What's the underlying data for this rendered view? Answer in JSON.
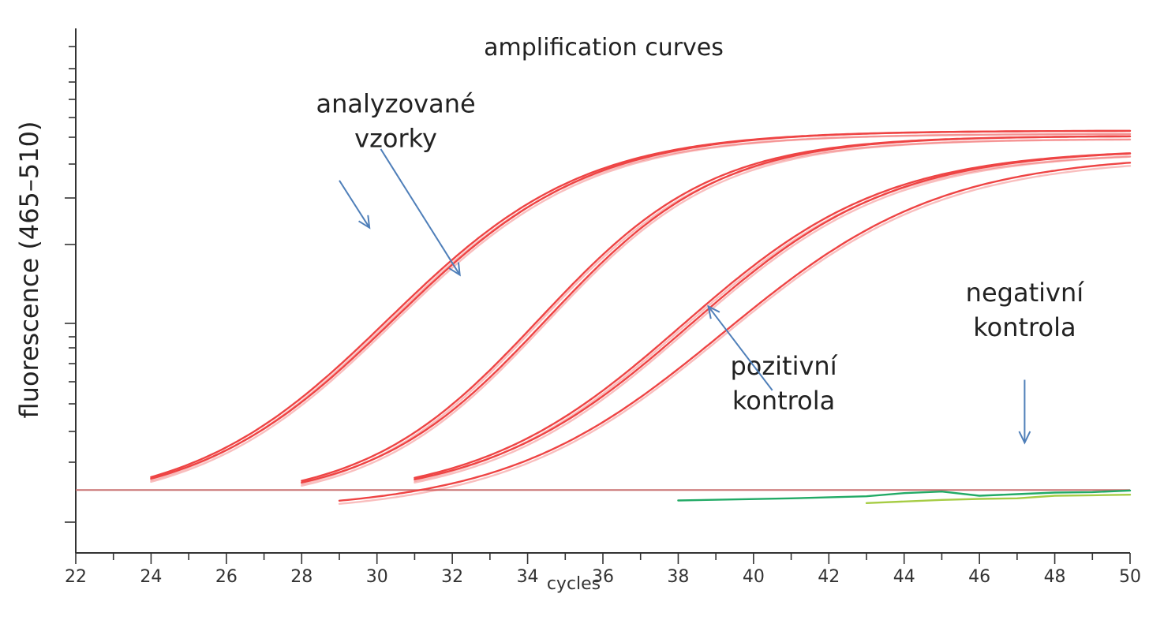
{
  "chart_data": {
    "type": "line",
    "title": "amplification curves",
    "xlabel": "cycles",
    "ylabel": "fluorescence (465–510)",
    "xlim": [
      22,
      50
    ],
    "ylim": [
      0,
      100
    ],
    "x_ticks": [
      22,
      24,
      26,
      28,
      30,
      32,
      34,
      36,
      38,
      40,
      42,
      44,
      46,
      48,
      50
    ],
    "x_minor_step": 1,
    "y_tick_labels": "none",
    "grid": false,
    "legend": "none",
    "colors": {
      "sample": "#ee4444",
      "negative": "#22aa66",
      "negative2": "#a6cc44",
      "threshold": "#c87070",
      "arrow": "#4f7fb9",
      "axis": "#333333"
    },
    "threshold": 12,
    "series": [
      {
        "group": "samples",
        "start": 24,
        "mid": 30.3,
        "scale": 2.6,
        "base": 8.6,
        "top": 80.5
      },
      {
        "group": "samples",
        "start": 24,
        "mid": 30.45,
        "scale": 2.6,
        "base": 8.6,
        "top": 80.5
      },
      {
        "group": "samples",
        "start": 28,
        "mid": 34.3,
        "scale": 2.3,
        "base": 9.5,
        "top": 79.5
      },
      {
        "group": "samples",
        "start": 28,
        "mid": 34.5,
        "scale": 2.3,
        "base": 9.5,
        "top": 79.5
      },
      {
        "group": "positive",
        "start": 31,
        "mid": 38.1,
        "scale": 2.7,
        "base": 9.8,
        "top": 77.0
      },
      {
        "group": "positive",
        "start": 31,
        "mid": 38.3,
        "scale": 2.7,
        "base": 9.8,
        "top": 77.0
      },
      {
        "group": "positive",
        "start": 29,
        "mid": 39.2,
        "scale": 2.9,
        "base": 8.0,
        "top": 76.0
      },
      {
        "group": "negative",
        "start": 38,
        "points": [
          [
            38,
            10.0
          ],
          [
            41,
            10.4
          ],
          [
            43,
            10.8
          ],
          [
            44,
            11.4
          ],
          [
            45,
            11.7
          ],
          [
            46,
            10.9
          ],
          [
            47,
            11.2
          ],
          [
            48,
            11.5
          ],
          [
            49,
            11.6
          ],
          [
            50,
            11.9
          ]
        ]
      },
      {
        "group": "negative",
        "start": 43,
        "points": [
          [
            43,
            9.5
          ],
          [
            45,
            10.1
          ],
          [
            46,
            10.3
          ],
          [
            47,
            10.4
          ],
          [
            48,
            10.9
          ],
          [
            49,
            11.0
          ],
          [
            50,
            11.1
          ]
        ]
      }
    ],
    "annotations": [
      {
        "lines": [
          "analyzované",
          "vzorky"
        ],
        "x": 30.5,
        "y": 84,
        "arrows": [
          [
            [
              29.0,
              71
            ],
            [
              29.8,
              62
            ]
          ],
          [
            [
              30.1,
              77
            ],
            [
              32.2,
              53
            ]
          ]
        ]
      },
      {
        "lines": [
          "pozitivní",
          "kontrola"
        ],
        "x": 40.8,
        "y": 34,
        "arrows": [
          [
            [
              40.5,
              31
            ],
            [
              38.8,
              47
            ]
          ]
        ]
      },
      {
        "lines": [
          "negativní",
          "kontrola"
        ],
        "x": 47.2,
        "y": 48,
        "arrows": [
          [
            [
              47.2,
              33
            ],
            [
              47.2,
              21
            ]
          ]
        ]
      }
    ]
  }
}
